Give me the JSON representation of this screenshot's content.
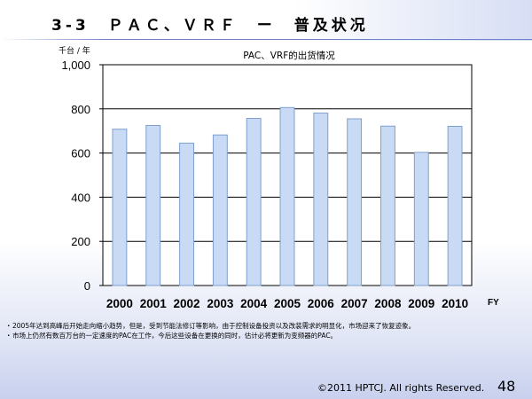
{
  "slide": {
    "title": "3-3　ＰＡＣ、ＶＲＦ　ー　普及状况",
    "notes": [
      "2005年达到高峰后开始走向缩小趋势，但是，受到节能法修订等影响，由于控制设备投资以及改装需求的明显化，市场迎来了恢复迹象。",
      "市场上仍然有数百万台的一定速度的PAC在工作，今后这些设备在更换的同时，估计必将更新为变频器的PAC。"
    ],
    "note_bullet": "・",
    "copyright": "©2011 HPTCJ. All rights Reserved.",
    "page_number": "48"
  },
  "chart_data": {
    "type": "bar",
    "title": "PAC、VRF的出货情况",
    "ylabel": "千台 / 年",
    "xlabel": "FY",
    "categories": [
      "2000",
      "2001",
      "2002",
      "2003",
      "2004",
      "2005",
      "2006",
      "2007",
      "2008",
      "2009",
      "2010"
    ],
    "values": [
      708,
      725,
      645,
      682,
      757,
      806,
      781,
      755,
      722,
      603,
      721
    ],
    "ylim": [
      0,
      1000
    ],
    "yticks": [
      "0",
      "200",
      "400",
      "600",
      "800",
      "1,000"
    ],
    "ytick_values": [
      0,
      200,
      400,
      600,
      800,
      1000
    ],
    "grid": true,
    "bar_fill": "#c9dbf4",
    "bar_stroke": "#7f9fcf",
    "grid_color": "#000000"
  }
}
